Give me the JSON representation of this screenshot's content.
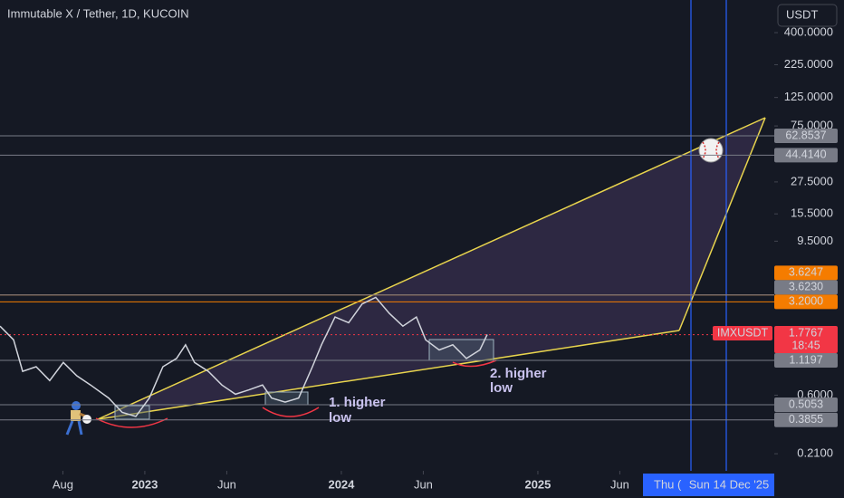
{
  "chart_data": {
    "type": "line",
    "title": "Immutable X / Tether, 1D, KUCOIN",
    "currency_button": "USDT",
    "log_scale": true,
    "color": "#d1d4dc",
    "x": [
      2022.263,
      2022.332,
      2022.378,
      2022.447,
      2022.516,
      2022.585,
      2022.654,
      2022.724,
      2022.816,
      2022.885,
      2022.954,
      2023.023,
      2023.092,
      2023.161,
      2023.207,
      2023.253,
      2023.323,
      2023.392,
      2023.461,
      2023.53,
      2023.599,
      2023.645,
      2023.714,
      2023.783,
      2023.853,
      2023.899,
      2023.968,
      2024.037,
      2024.106,
      2024.175,
      2024.244,
      2024.313,
      2024.382,
      2024.429,
      2024.498,
      2024.567,
      2024.636,
      2024.705,
      2024.742
    ],
    "values": [
      2.07,
      1.62,
      0.92,
      1.0,
      0.78,
      1.08,
      0.85,
      0.72,
      0.57,
      0.44,
      0.41,
      0.57,
      1.0,
      1.16,
      1.48,
      1.08,
      0.92,
      0.72,
      0.61,
      0.66,
      0.72,
      0.57,
      0.53,
      0.57,
      1.0,
      1.48,
      2.44,
      2.2,
      3.08,
      3.47,
      2.6,
      2.07,
      2.44,
      1.62,
      1.35,
      1.48,
      1.16,
      1.35,
      1.78
    ],
    "xlim": [
      2022.263,
      2026.203
    ],
    "xticks": [
      {
        "value": 2022.583,
        "label": "Aug"
      },
      2023,
      {
        "value": 2023.417,
        "label": "Jun"
      },
      2024,
      {
        "value": 2024.417,
        "label": "Jun"
      },
      2025,
      {
        "value": 2025.417,
        "label": "Jun"
      }
    ],
    "ylim": [
      0.1545,
      718
    ],
    "yticks": [
      {
        "value": 400,
        "label": "400.0000"
      },
      {
        "value": 225,
        "label": "225.0000"
      },
      {
        "value": 125,
        "label": "125.0000"
      },
      {
        "value": 75,
        "label": "75.0000"
      },
      {
        "value": 27.5,
        "label": "27.5000"
      },
      {
        "value": 15.5,
        "label": "15.5000"
      },
      {
        "value": 9.5,
        "label": "9.5000"
      },
      {
        "value": 0.6,
        "label": "0.6000"
      },
      {
        "value": 0.21,
        "label": "0.2100"
      }
    ],
    "price_tags": [
      {
        "value": 62.8537,
        "label": "62.8537",
        "color": "#787b86"
      },
      {
        "value": 44.414,
        "label": "44.4140",
        "color": "#787b86"
      },
      {
        "value": 3.6247,
        "label": "3.6247",
        "color": "#f57c00"
      },
      {
        "value": 3.623,
        "label": "3.6230",
        "color": "#787b86"
      },
      {
        "value": 3.2,
        "label": "3.2000",
        "color": "#f57c00"
      },
      {
        "value": 1.7767,
        "label": "1.7767",
        "color": "#f23645",
        "name": "IMXUSDT",
        "time": "18:45"
      },
      {
        "value": 1.1197,
        "label": "1.1197",
        "color": "#787b86"
      },
      {
        "value": 0.5053,
        "label": "0.5053",
        "color": "#787b86"
      },
      {
        "value": 0.3855,
        "label": "0.3855",
        "color": "#787b86"
      }
    ],
    "annotations": [
      [
        "1. higher",
        "low"
      ],
      [
        "2. higher",
        "low"
      ]
    ],
    "crosshair_labels": [
      "Thu (",
      "Sun 14 Dec '25"
    ]
  }
}
